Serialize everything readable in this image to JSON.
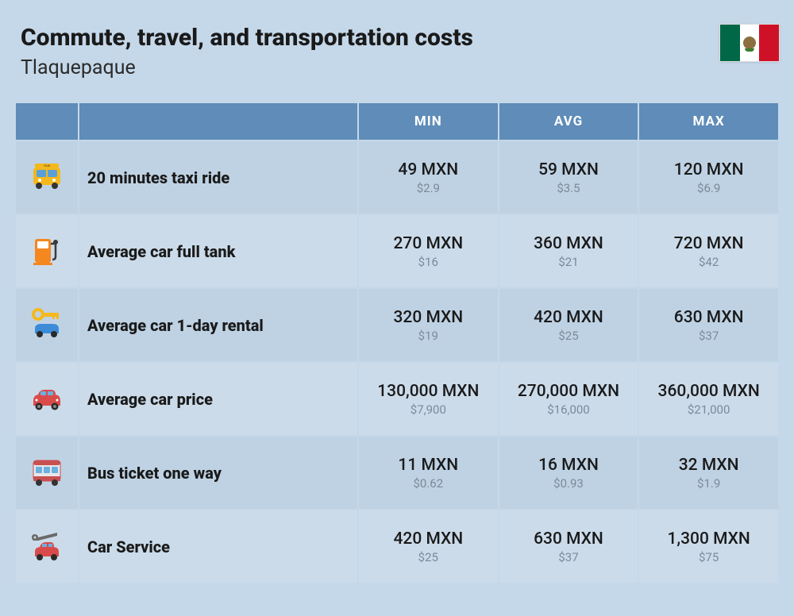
{
  "header": {
    "title": "Commute, travel, and transportation costs",
    "subtitle": "Tlaquepaque"
  },
  "table": {
    "columns": [
      "MIN",
      "AVG",
      "MAX"
    ],
    "header_bg": "#5f8cb8",
    "row_even_bg": "#bfd2e4",
    "row_odd_bg": "#cbdbea",
    "rows": [
      {
        "icon": "taxi",
        "label": "20 minutes taxi ride",
        "min": {
          "mxn": "49 MXN",
          "usd": "$2.9"
        },
        "avg": {
          "mxn": "59 MXN",
          "usd": "$3.5"
        },
        "max": {
          "mxn": "120 MXN",
          "usd": "$6.9"
        }
      },
      {
        "icon": "fuel-pump",
        "label": "Average car full tank",
        "min": {
          "mxn": "270 MXN",
          "usd": "$16"
        },
        "avg": {
          "mxn": "360 MXN",
          "usd": "$21"
        },
        "max": {
          "mxn": "720 MXN",
          "usd": "$42"
        }
      },
      {
        "icon": "car-key",
        "label": "Average car 1-day rental",
        "min": {
          "mxn": "320 MXN",
          "usd": "$19"
        },
        "avg": {
          "mxn": "420 MXN",
          "usd": "$25"
        },
        "max": {
          "mxn": "630 MXN",
          "usd": "$37"
        }
      },
      {
        "icon": "car",
        "label": "Average car price",
        "min": {
          "mxn": "130,000 MXN",
          "usd": "$7,900"
        },
        "avg": {
          "mxn": "270,000 MXN",
          "usd": "$16,000"
        },
        "max": {
          "mxn": "360,000 MXN",
          "usd": "$21,000"
        }
      },
      {
        "icon": "bus",
        "label": "Bus ticket one way",
        "min": {
          "mxn": "11 MXN",
          "usd": "$0.62"
        },
        "avg": {
          "mxn": "16 MXN",
          "usd": "$0.93"
        },
        "max": {
          "mxn": "32 MXN",
          "usd": "$1.9"
        }
      },
      {
        "icon": "wrench-car",
        "label": "Car Service",
        "min": {
          "mxn": "420 MXN",
          "usd": "$25"
        },
        "avg": {
          "mxn": "630 MXN",
          "usd": "$37"
        },
        "max": {
          "mxn": "1,300 MXN",
          "usd": "$75"
        }
      }
    ]
  },
  "colors": {
    "page_bg": "#c5d8e9",
    "title_color": "#1a1a1a",
    "sub_text_color": "#7a8a9a"
  }
}
